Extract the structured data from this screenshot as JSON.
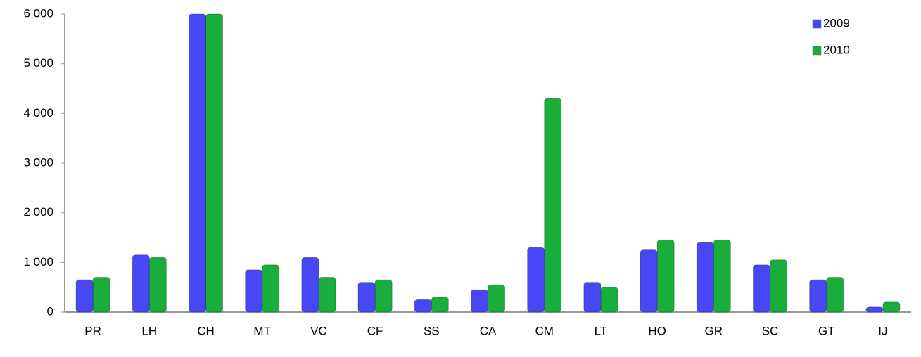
{
  "chart_data": {
    "type": "bar",
    "categories": [
      "PR",
      "LH",
      "CH",
      "MT",
      "VC",
      "CF",
      "SS",
      "CA",
      "CM",
      "LT",
      "HO",
      "GR",
      "SC",
      "GT",
      "IJ"
    ],
    "series": [
      {
        "name": "2009",
        "color": "#4747f5",
        "values": [
          650,
          1150,
          6000,
          850,
          1100,
          600,
          250,
          450,
          1300,
          600,
          1250,
          1400,
          950,
          650,
          100
        ]
      },
      {
        "name": "2010",
        "color": "#19ad3c",
        "values": [
          700,
          1100,
          6000,
          950,
          700,
          650,
          300,
          550,
          4300,
          500,
          1450,
          1450,
          1050,
          700,
          200
        ]
      }
    ],
    "ylim": [
      0,
      6000
    ],
    "yticks": [
      0,
      {
        "value": 1000,
        "label": "1 000"
      },
      {
        "value": 2000,
        "label": "2 000"
      },
      {
        "value": 3000,
        "label": "3 000"
      },
      {
        "value": 4000,
        "label": "4 000"
      },
      {
        "value": 5000,
        "label": "5 000"
      },
      {
        "value": 6000,
        "label": "6 000"
      }
    ],
    "grid": false,
    "legend": "top-right"
  }
}
